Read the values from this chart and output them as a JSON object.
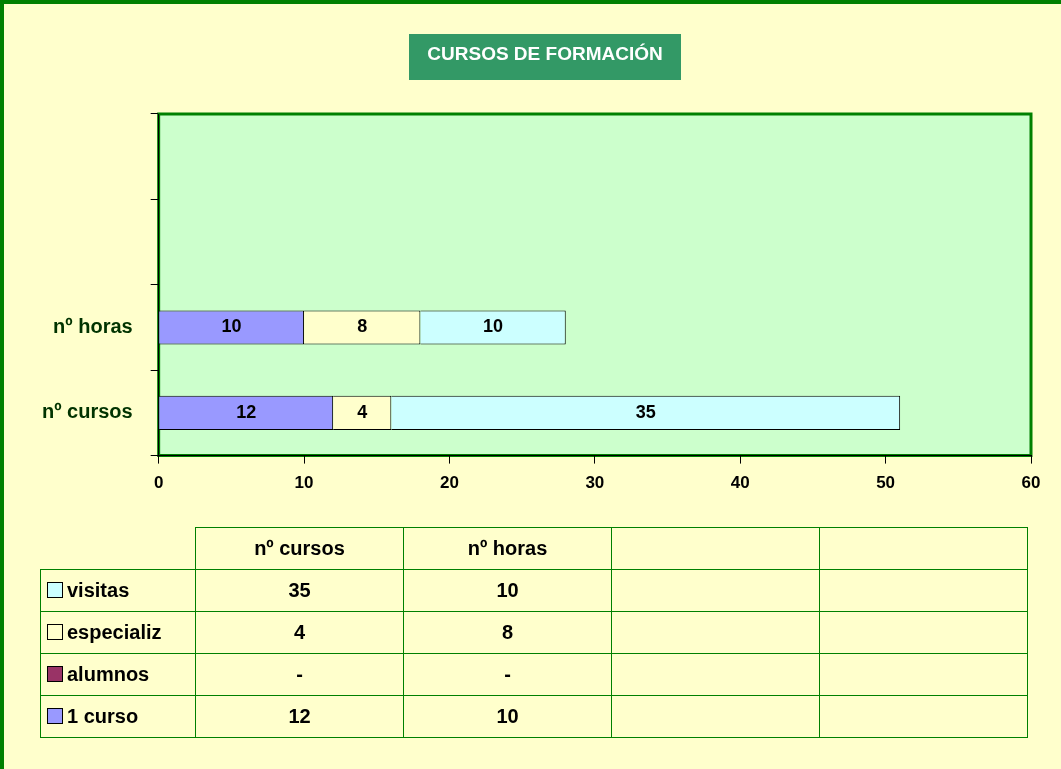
{
  "chart_data": [
    {
      "type": "bar",
      "orientation": "horizontal",
      "stacked": true,
      "title": "CURSOS DE FORMACIÓN",
      "categories": [
        null,
        null,
        "nº horas",
        "nº cursos"
      ],
      "series": [
        {
          "color": "#9999ff",
          "values": [
            null,
            null,
            10,
            12
          ]
        },
        {
          "color": "#993366",
          "values": [
            null,
            null,
            null,
            null
          ]
        },
        {
          "color": "#ffffcc",
          "values": [
            null,
            null,
            8,
            4
          ]
        },
        {
          "color": "#ccffff",
          "values": [
            null,
            null,
            10,
            35
          ]
        }
      ],
      "xlim": [
        0,
        60
      ],
      "xticks": [
        0,
        10,
        20,
        30,
        40,
        50,
        60
      ],
      "grid": false,
      "data_labels": true
    },
    {
      "type": "other",
      "categories": [
        "nº cursos",
        "nº horas",
        null,
        null
      ],
      "series": [
        {
          "name": "visitas",
          "color": "#ccffff",
          "values": [
            35,
            10,
            null,
            null
          ]
        },
        {
          "name": "especializ",
          "color": "#ffffcc",
          "values": [
            4,
            8,
            null,
            null
          ]
        },
        {
          "name": "alumnos",
          "color": "#993366",
          "values": [
            null,
            null,
            null,
            null
          ],
          "value_labels": [
            "-",
            "-",
            null,
            null
          ]
        },
        {
          "name": "1 curso",
          "color": "#9999ff",
          "values": [
            12,
            10,
            null,
            null
          ]
        }
      ],
      "legend": "left",
      "data_labels": true
    }
  ]
}
